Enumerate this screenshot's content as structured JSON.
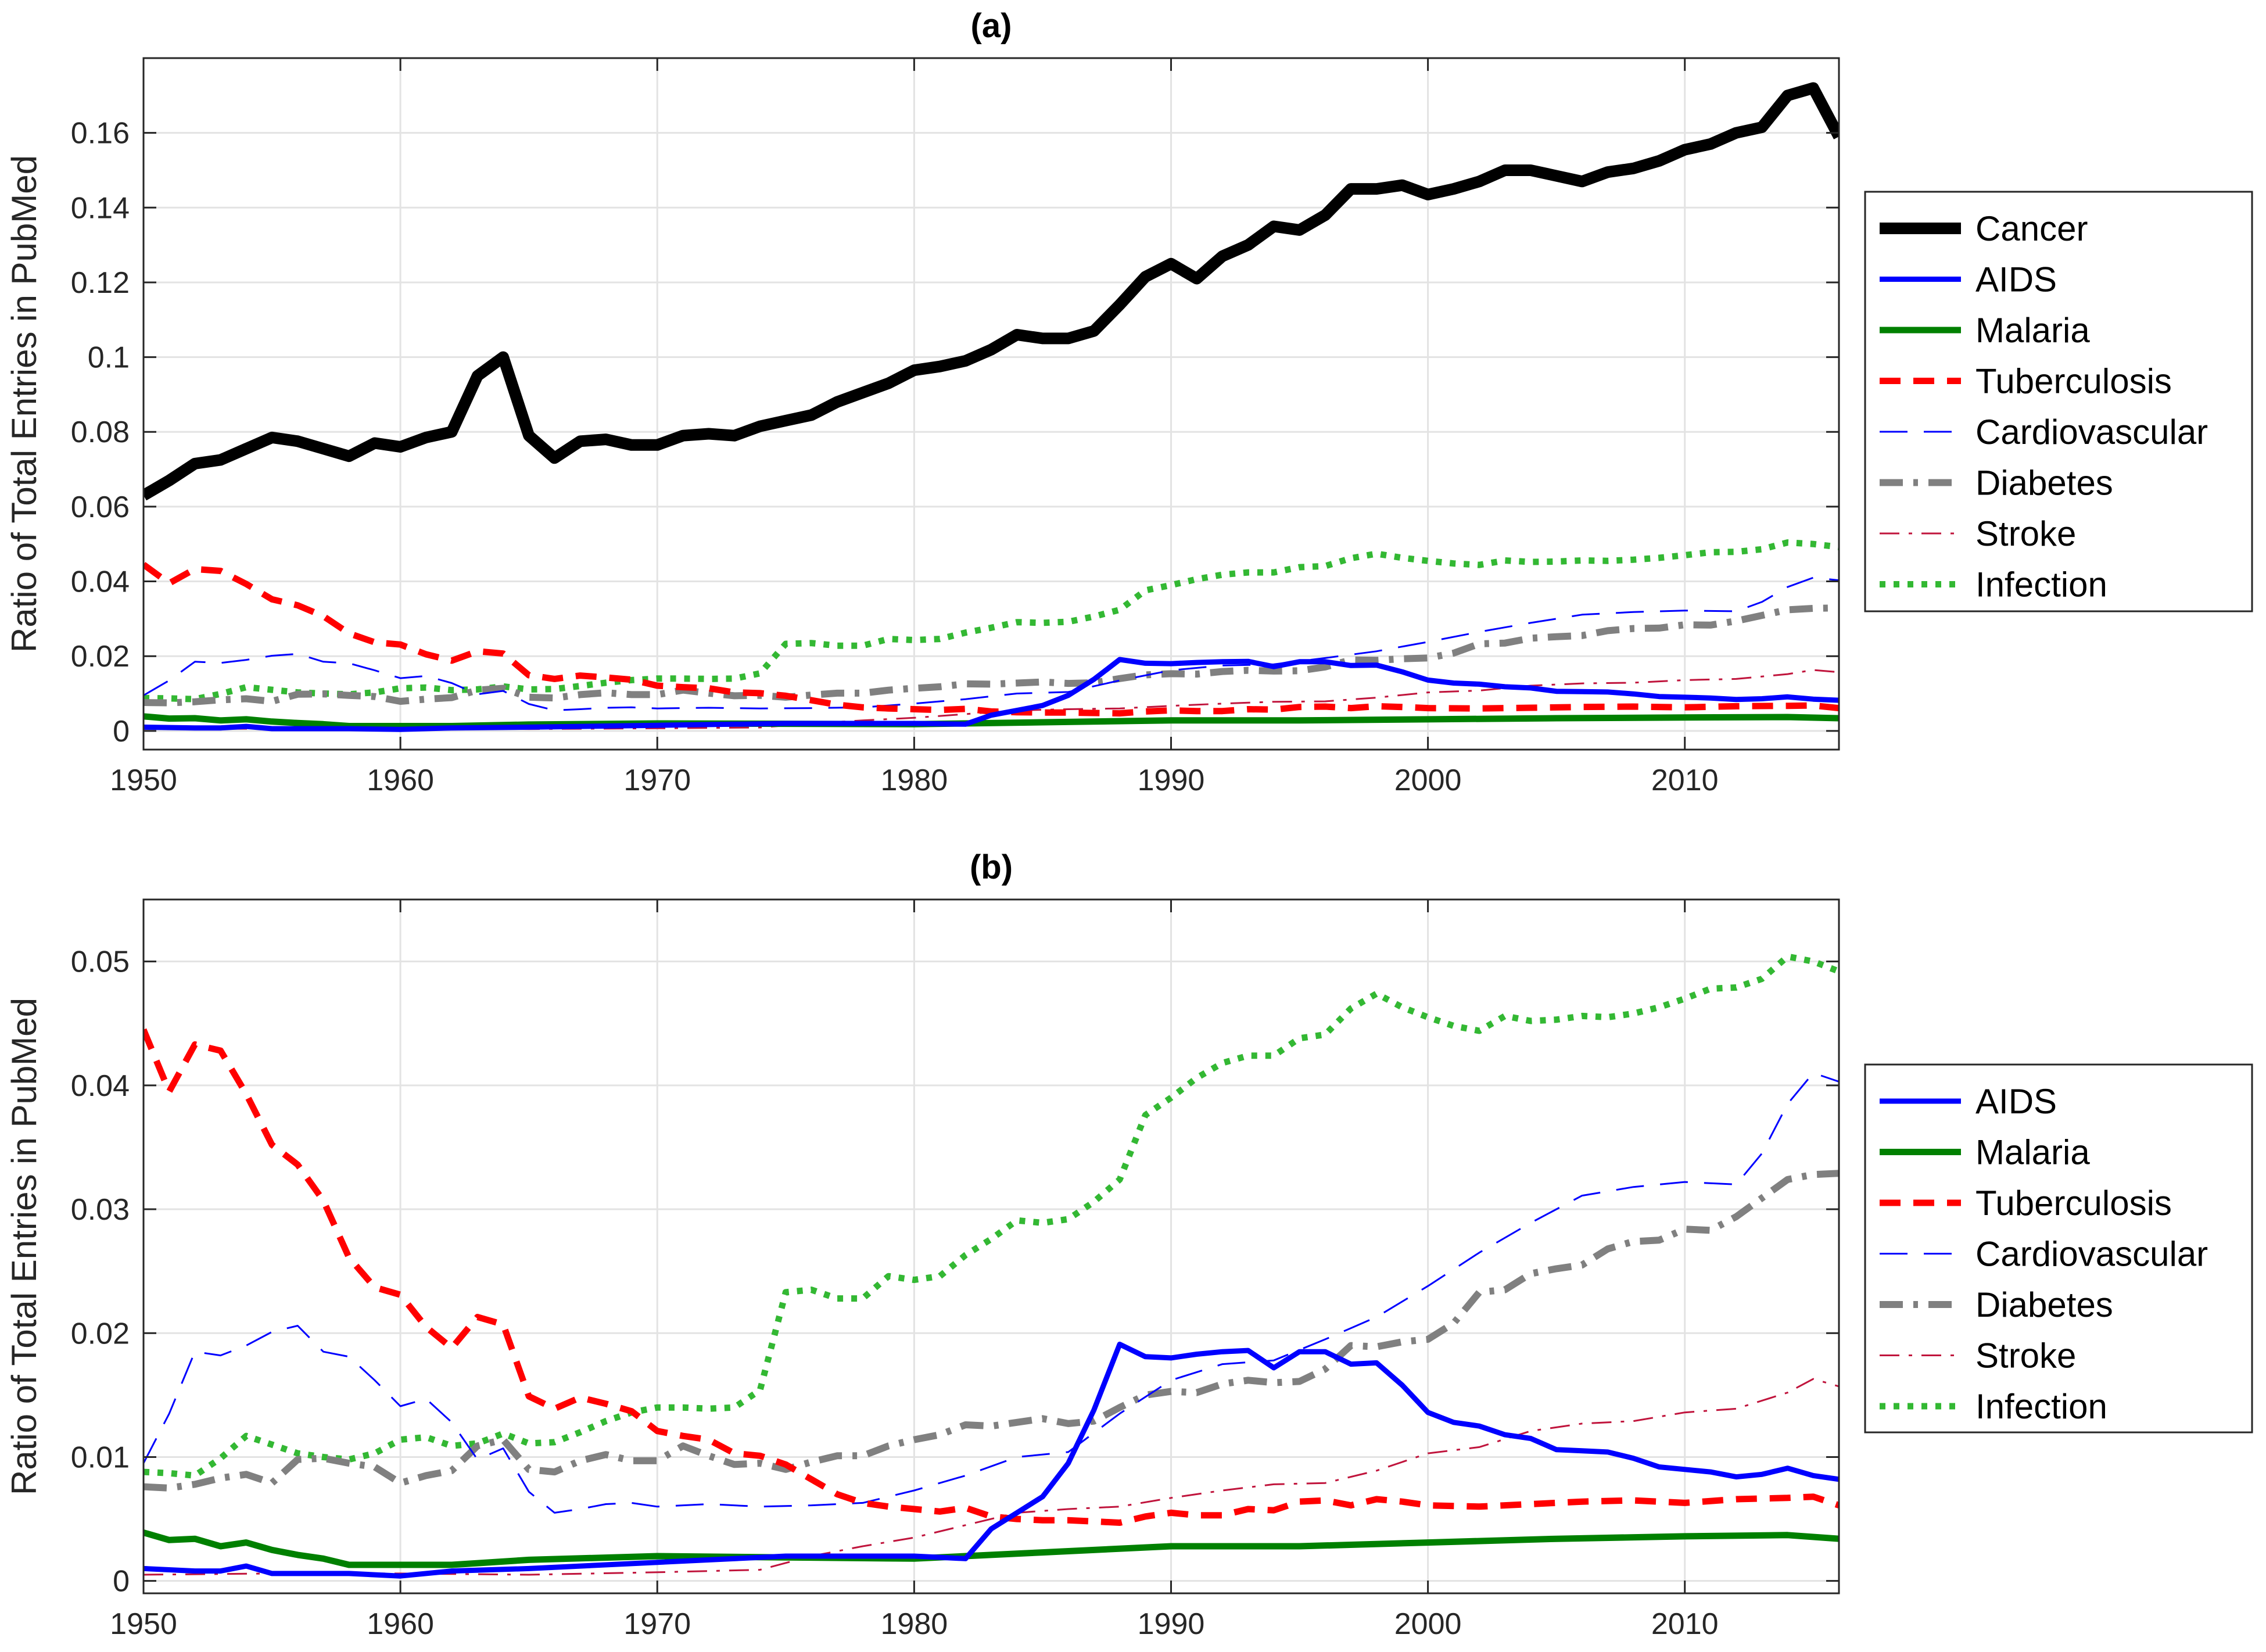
{
  "chart_data": [
    {
      "type": "line",
      "title": "(a)",
      "xlabel": "",
      "ylabel": "Ratio of Total Entries in PubMed",
      "xlim": [
        1950,
        2016
      ],
      "ylim": [
        -0.005,
        0.18
      ],
      "xticks": [
        1950,
        1960,
        1970,
        1980,
        1990,
        2000,
        2010
      ],
      "yticks": [
        0,
        0.02,
        0.04,
        0.06,
        0.08,
        0.1,
        0.12,
        0.14,
        0.16
      ],
      "ytick_labels": [
        "0",
        "0.02",
        "0.04",
        "0.06",
        "0.08",
        "0.1",
        "0.12",
        "0.14",
        "0.16"
      ],
      "grid": true,
      "legend": "right",
      "series": [
        {
          "name": "Cancer",
          "color": "#000000",
          "style": "solid",
          "width": 20,
          "x": [
            1950,
            1951,
            1952,
            1953,
            1954,
            1955,
            1956,
            1957,
            1958,
            1959,
            1960,
            1961,
            1962,
            1963,
            1964,
            1965,
            1966,
            1967,
            1968,
            1969,
            1970,
            1971,
            1972,
            1973,
            1974,
            1975,
            1976,
            1977,
            1978,
            1979,
            1980,
            1981,
            1982,
            1983,
            1984,
            1985,
            1986,
            1987,
            1988,
            1989,
            1990,
            1991,
            1992,
            1993,
            1994,
            1995,
            1996,
            1997,
            1998,
            1999,
            2000,
            2001,
            2002,
            2003,
            2004,
            2005,
            2006,
            2007,
            2008,
            2009,
            2010,
            2011,
            2012,
            2013,
            2014,
            2015,
            2016
          ],
          "y": [
            0.063,
            0.067,
            0.0715,
            0.0725,
            0.0755,
            0.0785,
            0.0775,
            0.0755,
            0.0735,
            0.077,
            0.076,
            0.0785,
            0.08,
            0.095,
            0.1,
            0.079,
            0.073,
            0.0775,
            0.078,
            0.0765,
            0.0765,
            0.079,
            0.0795,
            0.079,
            0.0815,
            0.083,
            0.0845,
            0.088,
            0.0905,
            0.093,
            0.0965,
            0.0975,
            0.099,
            0.102,
            0.106,
            0.105,
            0.105,
            0.107,
            0.114,
            0.1215,
            0.125,
            0.121,
            0.127,
            0.13,
            0.135,
            0.134,
            0.138,
            0.145,
            0.145,
            0.146,
            0.1435,
            0.145,
            0.147,
            0.15,
            0.15,
            0.1485,
            0.147,
            0.1495,
            0.1505,
            0.1525,
            0.1555,
            0.157,
            0.16,
            0.1615,
            0.17,
            0.172,
            0.159
          ]
        },
        {
          "name": "AIDS",
          "color": "#0000ff",
          "style": "solid",
          "width": 9,
          "x": [
            1950,
            1952,
            1953,
            1954,
            1955,
            1958,
            1960,
            1962,
            1965,
            1970,
            1975,
            1980,
            1982,
            1983,
            1984,
            1985,
            1986,
            1987,
            1988,
            1989,
            1990,
            1991,
            1992,
            1993,
            1994,
            1995,
            1996,
            1997,
            1998,
            1999,
            2000,
            2001,
            2002,
            2003,
            2004,
            2005,
            2006,
            2007,
            2008,
            2009,
            2010,
            2011,
            2012,
            2013,
            2014,
            2015,
            2016
          ],
          "y": [
            0.001,
            0.0008,
            0.0008,
            0.0012,
            0.0006,
            0.0006,
            0.0004,
            0.0008,
            0.001,
            0.0015,
            0.002,
            0.002,
            0.0018,
            0.0042,
            0.0055,
            0.0068,
            0.0095,
            0.0138,
            0.0191,
            0.0181,
            0.018,
            0.0183,
            0.0185,
            0.0186,
            0.0172,
            0.0185,
            0.0185,
            0.0175,
            0.0176,
            0.0158,
            0.0136,
            0.0128,
            0.0125,
            0.0118,
            0.0115,
            0.0106,
            0.0105,
            0.0104,
            0.0099,
            0.0092,
            0.009,
            0.0088,
            0.0084,
            0.0086,
            0.0091,
            0.0085,
            0.0082
          ]
        },
        {
          "name": "Malaria",
          "color": "#008000",
          "style": "solid",
          "width": 11,
          "x": [
            1950,
            1951,
            1952,
            1953,
            1954,
            1955,
            1956,
            1957,
            1958,
            1960,
            1962,
            1965,
            1970,
            1975,
            1980,
            1985,
            1990,
            1995,
            2000,
            2005,
            2010,
            2014,
            2016
          ],
          "y": [
            0.0039,
            0.0033,
            0.0034,
            0.0028,
            0.0031,
            0.0025,
            0.0021,
            0.0018,
            0.0013,
            0.0013,
            0.0013,
            0.0017,
            0.002,
            0.0019,
            0.0018,
            0.0023,
            0.0028,
            0.0028,
            0.0031,
            0.0034,
            0.0036,
            0.0037,
            0.0034
          ]
        },
        {
          "name": "Tuberculosis",
          "color": "#ff0000",
          "style": "dashed",
          "width": 11,
          "x": [
            1950,
            1951,
            1952,
            1953,
            1954,
            1955,
            1956,
            1957,
            1958,
            1959,
            1960,
            1961,
            1962,
            1963,
            1964,
            1965,
            1966,
            1967,
            1968,
            1969,
            1970,
            1971,
            1972,
            1973,
            1974,
            1975,
            1976,
            1977,
            1978,
            1979,
            1980,
            1981,
            1982,
            1983,
            1984,
            1985,
            1986,
            1987,
            1988,
            1989,
            1990,
            1991,
            1992,
            1993,
            1994,
            1995,
            1996,
            1997,
            1998,
            1999,
            2000,
            2002,
            2004,
            2006,
            2008,
            2010,
            2012,
            2014,
            2015,
            2016
          ],
          "y": [
            0.0445,
            0.0395,
            0.0433,
            0.0428,
            0.0393,
            0.0352,
            0.0336,
            0.0307,
            0.0261,
            0.0237,
            0.0231,
            0.0205,
            0.0188,
            0.0213,
            0.0207,
            0.0149,
            0.0139,
            0.0148,
            0.0143,
            0.0137,
            0.0121,
            0.0117,
            0.0114,
            0.0103,
            0.0101,
            0.0094,
            0.0082,
            0.007,
            0.0063,
            0.006,
            0.0058,
            0.0056,
            0.0059,
            0.0052,
            0.005,
            0.0049,
            0.0049,
            0.0048,
            0.0047,
            0.0052,
            0.0055,
            0.0053,
            0.0053,
            0.0058,
            0.0057,
            0.0064,
            0.0065,
            0.0061,
            0.0066,
            0.0064,
            0.0061,
            0.006,
            0.0062,
            0.0064,
            0.0065,
            0.0063,
            0.0066,
            0.0067,
            0.0068,
            0.0061
          ]
        },
        {
          "name": "Cardiovascular",
          "color": "#0000ff",
          "style": "longdash",
          "width": 3,
          "x": [
            1950,
            1951,
            1952,
            1953,
            1954,
            1955,
            1956,
            1957,
            1958,
            1959,
            1960,
            1961,
            1962,
            1963,
            1964,
            1965,
            1966,
            1967,
            1968,
            1969,
            1970,
            1972,
            1974,
            1976,
            1978,
            1980,
            1982,
            1984,
            1986,
            1988,
            1990,
            1992,
            1994,
            1996,
            1998,
            2000,
            2002,
            2004,
            2006,
            2008,
            2010,
            2012,
            2013,
            2014,
            2015,
            2016
          ],
          "y": [
            0.0095,
            0.0135,
            0.0185,
            0.0182,
            0.019,
            0.0201,
            0.0206,
            0.0185,
            0.0181,
            0.0162,
            0.0141,
            0.0147,
            0.0128,
            0.0098,
            0.0107,
            0.0072,
            0.0055,
            0.0058,
            0.0062,
            0.0063,
            0.006,
            0.0062,
            0.006,
            0.0061,
            0.0063,
            0.0073,
            0.0085,
            0.01,
            0.0104,
            0.0135,
            0.0162,
            0.0175,
            0.0178,
            0.0195,
            0.0213,
            0.0238,
            0.0265,
            0.0289,
            0.0311,
            0.0318,
            0.0322,
            0.032,
            0.0345,
            0.0385,
            0.041,
            0.0403
          ]
        },
        {
          "name": "Diabetes",
          "color": "#808080",
          "style": "dashdot",
          "width": 12,
          "x": [
            1950,
            1951,
            1952,
            1953,
            1954,
            1955,
            1956,
            1957,
            1958,
            1959,
            1960,
            1961,
            1962,
            1963,
            1964,
            1965,
            1966,
            1967,
            1968,
            1969,
            1970,
            1971,
            1972,
            1973,
            1974,
            1975,
            1976,
            1977,
            1978,
            1979,
            1980,
            1981,
            1982,
            1983,
            1984,
            1985,
            1986,
            1987,
            1988,
            1989,
            1990,
            1991,
            1992,
            1993,
            1994,
            1995,
            1996,
            1997,
            1998,
            1999,
            2000,
            2001,
            2002,
            2003,
            2004,
            2005,
            2006,
            2007,
            2008,
            2009,
            2010,
            2011,
            2012,
            2013,
            2014,
            2015,
            2016
          ],
          "y": [
            0.0076,
            0.0075,
            0.0078,
            0.0083,
            0.0086,
            0.0079,
            0.0098,
            0.0099,
            0.0095,
            0.0092,
            0.0079,
            0.0085,
            0.0089,
            0.0109,
            0.0114,
            0.009,
            0.0088,
            0.0097,
            0.0102,
            0.0097,
            0.0097,
            0.0109,
            0.0101,
            0.0094,
            0.0095,
            0.009,
            0.0096,
            0.0101,
            0.0101,
            0.0109,
            0.0114,
            0.0118,
            0.0126,
            0.0125,
            0.0128,
            0.0131,
            0.0127,
            0.0129,
            0.014,
            0.015,
            0.0153,
            0.0152,
            0.0159,
            0.0162,
            0.016,
            0.0161,
            0.0171,
            0.019,
            0.0189,
            0.0193,
            0.0195,
            0.0208,
            0.0233,
            0.0235,
            0.0248,
            0.0252,
            0.0255,
            0.0268,
            0.0274,
            0.0275,
            0.0284,
            0.0283,
            0.0294,
            0.0309,
            0.0324,
            0.0328,
            0.0329
          ]
        },
        {
          "name": "Stroke",
          "color": "#c0143c",
          "style": "dashdotthin",
          "width": 3,
          "x": [
            1950,
            1955,
            1960,
            1965,
            1970,
            1974,
            1976,
            1978,
            1980,
            1982,
            1984,
            1986,
            1988,
            1990,
            1992,
            1994,
            1996,
            1998,
            2000,
            2002,
            2004,
            2006,
            2008,
            2010,
            2012,
            2014,
            2015,
            2016
          ],
          "y": [
            0.0005,
            0.0006,
            0.0006,
            0.0005,
            0.0007,
            0.0009,
            0.002,
            0.0028,
            0.0035,
            0.0045,
            0.0055,
            0.0058,
            0.006,
            0.0067,
            0.0073,
            0.0078,
            0.0079,
            0.0089,
            0.0103,
            0.0108,
            0.0121,
            0.0127,
            0.0129,
            0.0136,
            0.0139,
            0.0152,
            0.0163,
            0.0157
          ]
        },
        {
          "name": "Infection",
          "color": "#33b833",
          "style": "dotted",
          "width": 11,
          "x": [
            1950,
            1951,
            1952,
            1953,
            1954,
            1955,
            1956,
            1957,
            1958,
            1959,
            1960,
            1961,
            1962,
            1963,
            1964,
            1965,
            1966,
            1967,
            1968,
            1969,
            1970,
            1971,
            1972,
            1973,
            1974,
            1975,
            1976,
            1977,
            1978,
            1979,
            1980,
            1981,
            1982,
            1983,
            1984,
            1985,
            1986,
            1987,
            1988,
            1989,
            1990,
            1991,
            1992,
            1993,
            1994,
            1995,
            1996,
            1997,
            1998,
            1999,
            2000,
            2001,
            2002,
            2003,
            2004,
            2005,
            2006,
            2007,
            2008,
            2009,
            2010,
            2011,
            2012,
            2013,
            2014,
            2015,
            2016
          ],
          "y": [
            0.0088,
            0.0087,
            0.0085,
            0.0099,
            0.0117,
            0.011,
            0.0103,
            0.01,
            0.0098,
            0.0103,
            0.0114,
            0.0116,
            0.0109,
            0.0111,
            0.0119,
            0.0111,
            0.0112,
            0.012,
            0.0129,
            0.0136,
            0.014,
            0.014,
            0.0139,
            0.014,
            0.0154,
            0.0233,
            0.0235,
            0.0228,
            0.0228,
            0.0246,
            0.0243,
            0.0246,
            0.0263,
            0.0276,
            0.0291,
            0.0289,
            0.0292,
            0.0306,
            0.0324,
            0.0376,
            0.039,
            0.0406,
            0.0418,
            0.0424,
            0.0424,
            0.0438,
            0.0441,
            0.0462,
            0.0474,
            0.0463,
            0.0455,
            0.0448,
            0.0444,
            0.0456,
            0.0452,
            0.0453,
            0.0456,
            0.0455,
            0.0458,
            0.0463,
            0.047,
            0.0478,
            0.0479,
            0.0486,
            0.0504,
            0.05,
            0.0492
          ]
        }
      ]
    },
    {
      "type": "line",
      "title": "(b)",
      "xlabel": "",
      "ylabel": "Ratio of Total Entries in PubMed",
      "xlim": [
        1950,
        2016
      ],
      "ylim": [
        -0.001,
        0.055
      ],
      "xticks": [
        1950,
        1960,
        1970,
        1980,
        1990,
        2000,
        2010
      ],
      "yticks": [
        0,
        0.01,
        0.02,
        0.03,
        0.04,
        0.05
      ],
      "ytick_labels": [
        "0",
        "0.01",
        "0.02",
        "0.03",
        "0.04",
        "0.05"
      ],
      "grid": true,
      "legend": "right",
      "series_from_panel_a": [
        "AIDS",
        "Malaria",
        "Tuberculosis",
        "Cardiovascular",
        "Diabetes",
        "Stroke",
        "Infection"
      ]
    }
  ]
}
